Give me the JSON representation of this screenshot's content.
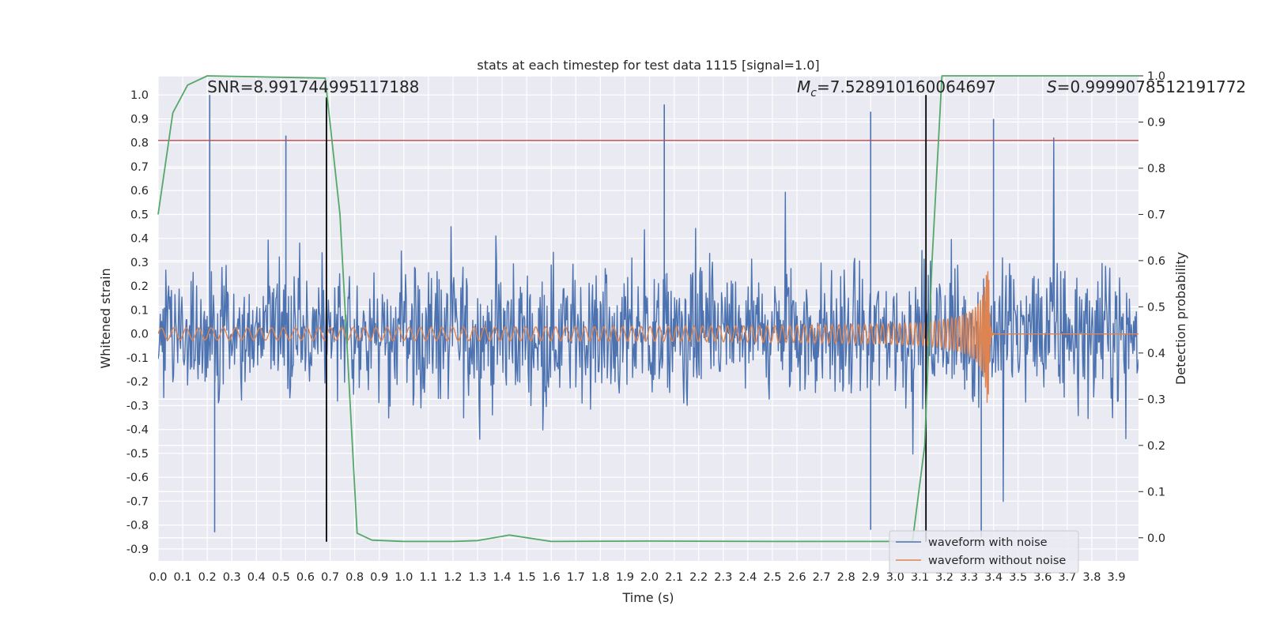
{
  "chart_data": {
    "type": "line",
    "title": "stats at each timestep for test data 1115 [signal=1.0]",
    "xlabel": "Time (s)",
    "ylabel": "Whitened strain",
    "ylabel_right": "Detection probability",
    "xlim": [
      0.0,
      3.99
    ],
    "ylim": [
      -0.95,
      1.08
    ],
    "ylim_right": [
      -0.05,
      1.0
    ],
    "x_ticks": [
      "0.0",
      "0.1",
      "0.2",
      "0.3",
      "0.4",
      "0.5",
      "0.6",
      "0.7",
      "0.8",
      "0.9",
      "1.0",
      "1.1",
      "1.2",
      "1.3",
      "1.4",
      "1.5",
      "1.6",
      "1.7",
      "1.8",
      "1.9",
      "2.0",
      "2.1",
      "2.2",
      "2.3",
      "2.4",
      "2.5",
      "2.6",
      "2.7",
      "2.8",
      "2.9",
      "3.0",
      "3.1",
      "3.2",
      "3.3",
      "3.4",
      "3.5",
      "3.6",
      "3.7",
      "3.8",
      "3.9"
    ],
    "y_ticks": [
      "1.0",
      "0.9",
      "0.8",
      "0.7",
      "0.6",
      "0.5",
      "0.4",
      "0.3",
      "0.2",
      "0.1",
      "0.0",
      "-0.1",
      "-0.2",
      "-0.3",
      "-0.4",
      "-0.5",
      "-0.6",
      "-0.7",
      "-0.8",
      "-0.9"
    ],
    "y_ticks_right": [
      "1.0",
      "0.9",
      "0.8",
      "0.7",
      "0.6",
      "0.5",
      "0.4",
      "0.3",
      "0.2",
      "0.1",
      "0.0"
    ],
    "grid": true,
    "legend_position": "lower-right",
    "series": [
      {
        "name": "waveform with noise",
        "axis": "left",
        "color": "#4c72b0",
        "kind": "noisy strain",
        "n_points": 8192,
        "approx_spread": 0.2,
        "peak_spikes": [
          [
            0.21,
            1.0
          ],
          [
            0.52,
            0.83
          ],
          [
            2.06,
            0.96
          ],
          [
            2.9,
            0.93
          ],
          [
            3.4,
            0.9
          ],
          [
            0.23,
            -0.83
          ],
          [
            3.35,
            -0.85
          ],
          [
            2.9,
            -0.82
          ]
        ]
      },
      {
        "name": "waveform without noise",
        "axis": "left",
        "color": "#dd8452",
        "kind": "chirp",
        "merger_time": 3.38,
        "amplitude_early": 0.025,
        "amplitude_peak": 0.29,
        "ringdown_end": 3.4
      },
      {
        "name": "",
        "axis": "right",
        "color": "#55a868",
        "kind": "detection probability",
        "x": [
          0.0,
          0.06,
          0.12,
          0.2,
          0.68,
          0.74,
          0.81,
          0.87,
          1.0,
          1.2,
          1.3,
          1.43,
          1.6,
          2.0,
          2.5,
          3.0,
          3.07,
          3.12,
          3.15,
          3.19,
          3.99
        ],
        "y": [
          0.7,
          0.92,
          0.98,
          1.0,
          0.995,
          0.7,
          0.01,
          -0.005,
          -0.008,
          -0.008,
          -0.006,
          0.006,
          -0.008,
          -0.007,
          -0.008,
          -0.008,
          -0.008,
          0.2,
          0.6,
          1.0,
          1.0
        ]
      }
    ],
    "hlines": [
      {
        "y": 0.81,
        "axis": "left",
        "color": "#c44e52"
      }
    ],
    "vlines": [
      {
        "x": 0.685,
        "color": "#000000",
        "y_from": -0.87,
        "y_to": 0.99
      },
      {
        "x": 3.125,
        "color": "#000000",
        "y_from": -0.87,
        "y_to": 1.0
      }
    ],
    "annotations": [
      {
        "text": "SNR=8.991744995117188",
        "x": 0.2,
        "y": 1.01
      },
      {
        "text_var": "M",
        "text_sub": "c",
        "text_rest": "=7.528910160064697",
        "x": 2.6,
        "y": 1.01
      },
      {
        "text_var": "S",
        "text_rest": "=0.9999078512191772",
        "x": 3.6,
        "y": 1.01
      }
    ]
  }
}
